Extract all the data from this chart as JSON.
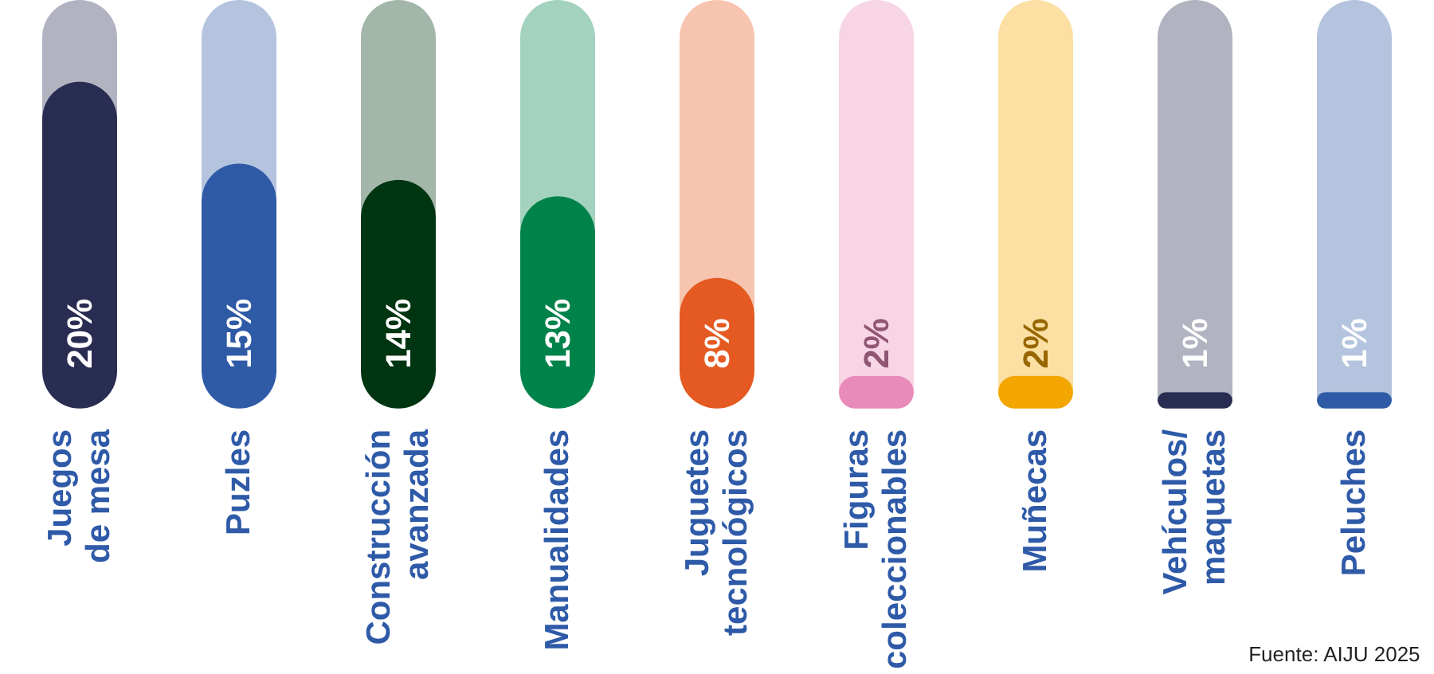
{
  "chart_data": {
    "type": "bar",
    "categories": [
      "Juegos de mesa",
      "Puzles",
      "Construcción avanzada",
      "Manualidades",
      "Juguetes tecnológicos",
      "Figuras coleccionables",
      "Muñecas",
      "Vehículos/maquetas",
      "Peluches"
    ],
    "values": [
      20,
      15,
      14,
      13,
      8,
      2,
      2,
      1,
      1
    ],
    "colors": [
      "#2a2d52",
      "#2e5aa6",
      "#003512",
      "#00834a",
      "#e55a22",
      "#e98bb8",
      "#f4a600",
      "#2a2d52",
      "#2e5aa6"
    ],
    "value_labels": [
      "20%",
      "15%",
      "14%",
      "13%",
      "8%",
      "2%",
      "2%",
      "1%",
      "1%"
    ],
    "tick_labels": "x",
    "annotations": [
      "Fuente: AIJU 2025"
    ]
  }
}
